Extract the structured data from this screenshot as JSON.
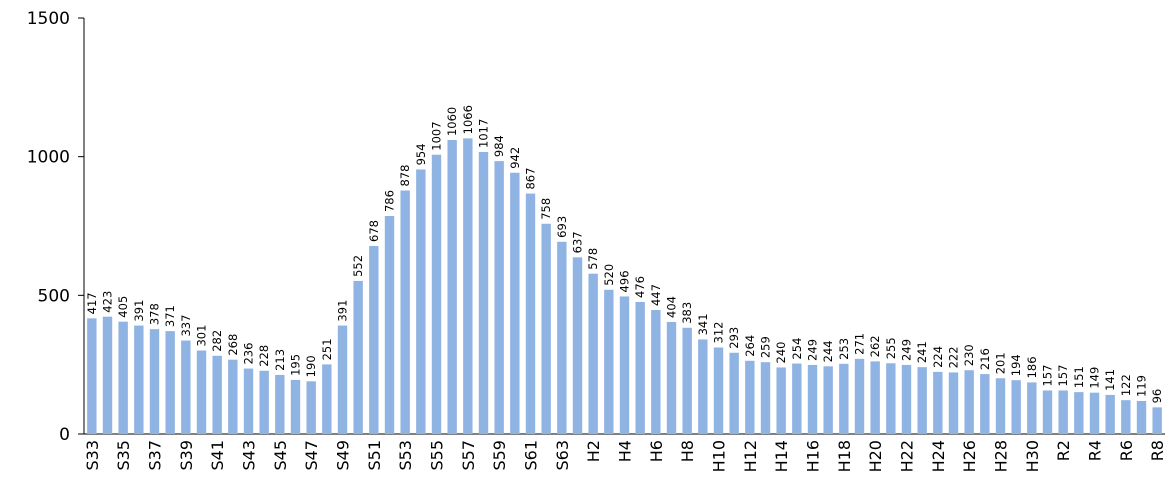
{
  "chart_data": {
    "type": "bar",
    "categories": [
      "S33",
      null,
      "S35",
      null,
      "S37",
      null,
      "S39",
      null,
      "S41",
      null,
      "S43",
      null,
      "S45",
      null,
      "S47",
      null,
      "S49",
      null,
      "S51",
      null,
      "S53",
      null,
      "S55",
      null,
      "S57",
      null,
      "S59",
      null,
      "S61",
      null,
      "S63",
      null,
      "H2",
      null,
      "H4",
      null,
      "H6",
      null,
      "H8",
      null,
      "H10",
      null,
      "H12",
      null,
      "H14",
      null,
      "H16",
      null,
      "H18",
      null,
      "H20",
      null,
      "H22",
      null,
      "H24",
      null,
      "H26",
      null,
      "H28",
      null,
      "H30",
      null,
      "R2",
      null,
      "R4",
      null,
      "R6",
      null,
      "R8"
    ],
    "values": [
      417,
      423,
      405,
      391,
      378,
      371,
      337,
      301,
      282,
      268,
      236,
      228,
      213,
      195,
      190,
      251,
      391,
      552,
      678,
      786,
      878,
      954,
      1007,
      1060,
      1066,
      1017,
      984,
      942,
      867,
      758,
      693,
      637,
      578,
      520,
      496,
      476,
      447,
      404,
      383,
      341,
      312,
      293,
      264,
      259,
      240,
      254,
      249,
      244,
      253,
      271,
      262,
      255,
      249,
      241,
      224,
      222,
      230,
      216,
      201,
      194,
      186,
      157,
      157,
      151,
      149,
      141,
      122,
      119,
      96
    ],
    "color": "#8fb4e3",
    "ylim": [
      0,
      1500
    ],
    "yticks": [
      0,
      500,
      1000,
      1500
    ],
    "grid": false
  }
}
